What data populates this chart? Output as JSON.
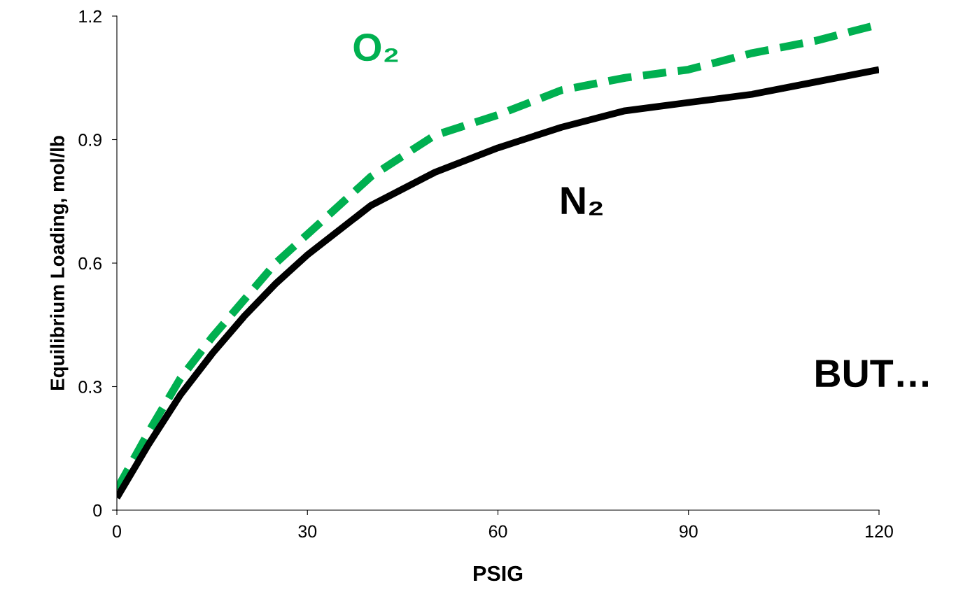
{
  "chart_data": {
    "type": "line",
    "xlabel": "PSIG",
    "ylabel": "Equilibrium Loading, mol/lb",
    "xlim": [
      0,
      120
    ],
    "ylim": [
      0,
      1.2
    ],
    "xticks": [
      0,
      30,
      60,
      90,
      120
    ],
    "yticks": [
      0,
      0.3,
      0.6,
      0.9,
      1.2
    ],
    "grid": false,
    "legend": false,
    "marker": "none",
    "x": [
      0,
      5,
      10,
      15,
      20,
      25,
      30,
      40,
      50,
      60,
      70,
      80,
      90,
      100,
      110,
      120
    ],
    "series": [
      {
        "name": "O₂",
        "color": "#00b050",
        "line_style": "dashed",
        "values": [
          0.05,
          0.19,
          0.32,
          0.42,
          0.51,
          0.6,
          0.67,
          0.81,
          0.91,
          0.96,
          1.02,
          1.05,
          1.07,
          1.11,
          1.14,
          1.18
        ]
      },
      {
        "name": "N₂",
        "color": "#000000",
        "line_style": "solid",
        "values": [
          0.03,
          0.16,
          0.28,
          0.38,
          0.47,
          0.55,
          0.62,
          0.74,
          0.82,
          0.88,
          0.93,
          0.97,
          0.99,
          1.01,
          1.04,
          1.07
        ]
      }
    ],
    "annotations": [
      "BUT…"
    ]
  }
}
